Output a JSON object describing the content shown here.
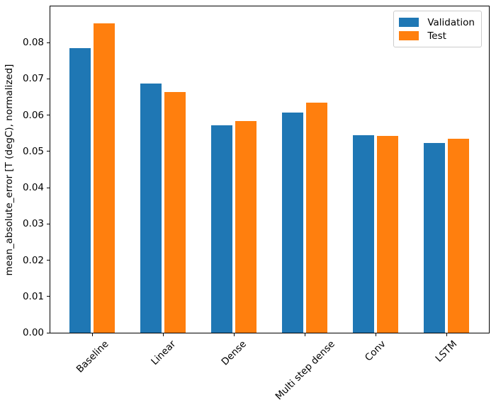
{
  "figure": {
    "background": "#ffffff",
    "spine_color": "#000000",
    "legend_border_color": "#cccccc"
  },
  "chart_data": {
    "type": "bar",
    "title": "",
    "xlabel": "",
    "ylabel": "mean_absolute_error [T (degC), normalized]",
    "categories": [
      "Baseline",
      "Linear",
      "Dense",
      "Multi step dense",
      "Conv",
      "LSTM"
    ],
    "series": [
      {
        "name": "Validation",
        "color": "#1f77b4",
        "values": [
          0.0785,
          0.0687,
          0.0572,
          0.0607,
          0.0545,
          0.0524
        ]
      },
      {
        "name": "Test",
        "color": "#ff7f0e",
        "values": [
          0.0853,
          0.0664,
          0.0583,
          0.0634,
          0.0543,
          0.0534
        ]
      }
    ],
    "ylim": [
      0,
      0.09
    ],
    "yticks": [
      0.0,
      0.01,
      0.02,
      0.03,
      0.04,
      0.05,
      0.06,
      0.07,
      0.08
    ],
    "ytick_labels": [
      "0.00",
      "0.01",
      "0.02",
      "0.03",
      "0.04",
      "0.05",
      "0.06",
      "0.07",
      "0.08"
    ],
    "xtick_rotation": 45,
    "grid": false,
    "legend_position": "upper right"
  }
}
